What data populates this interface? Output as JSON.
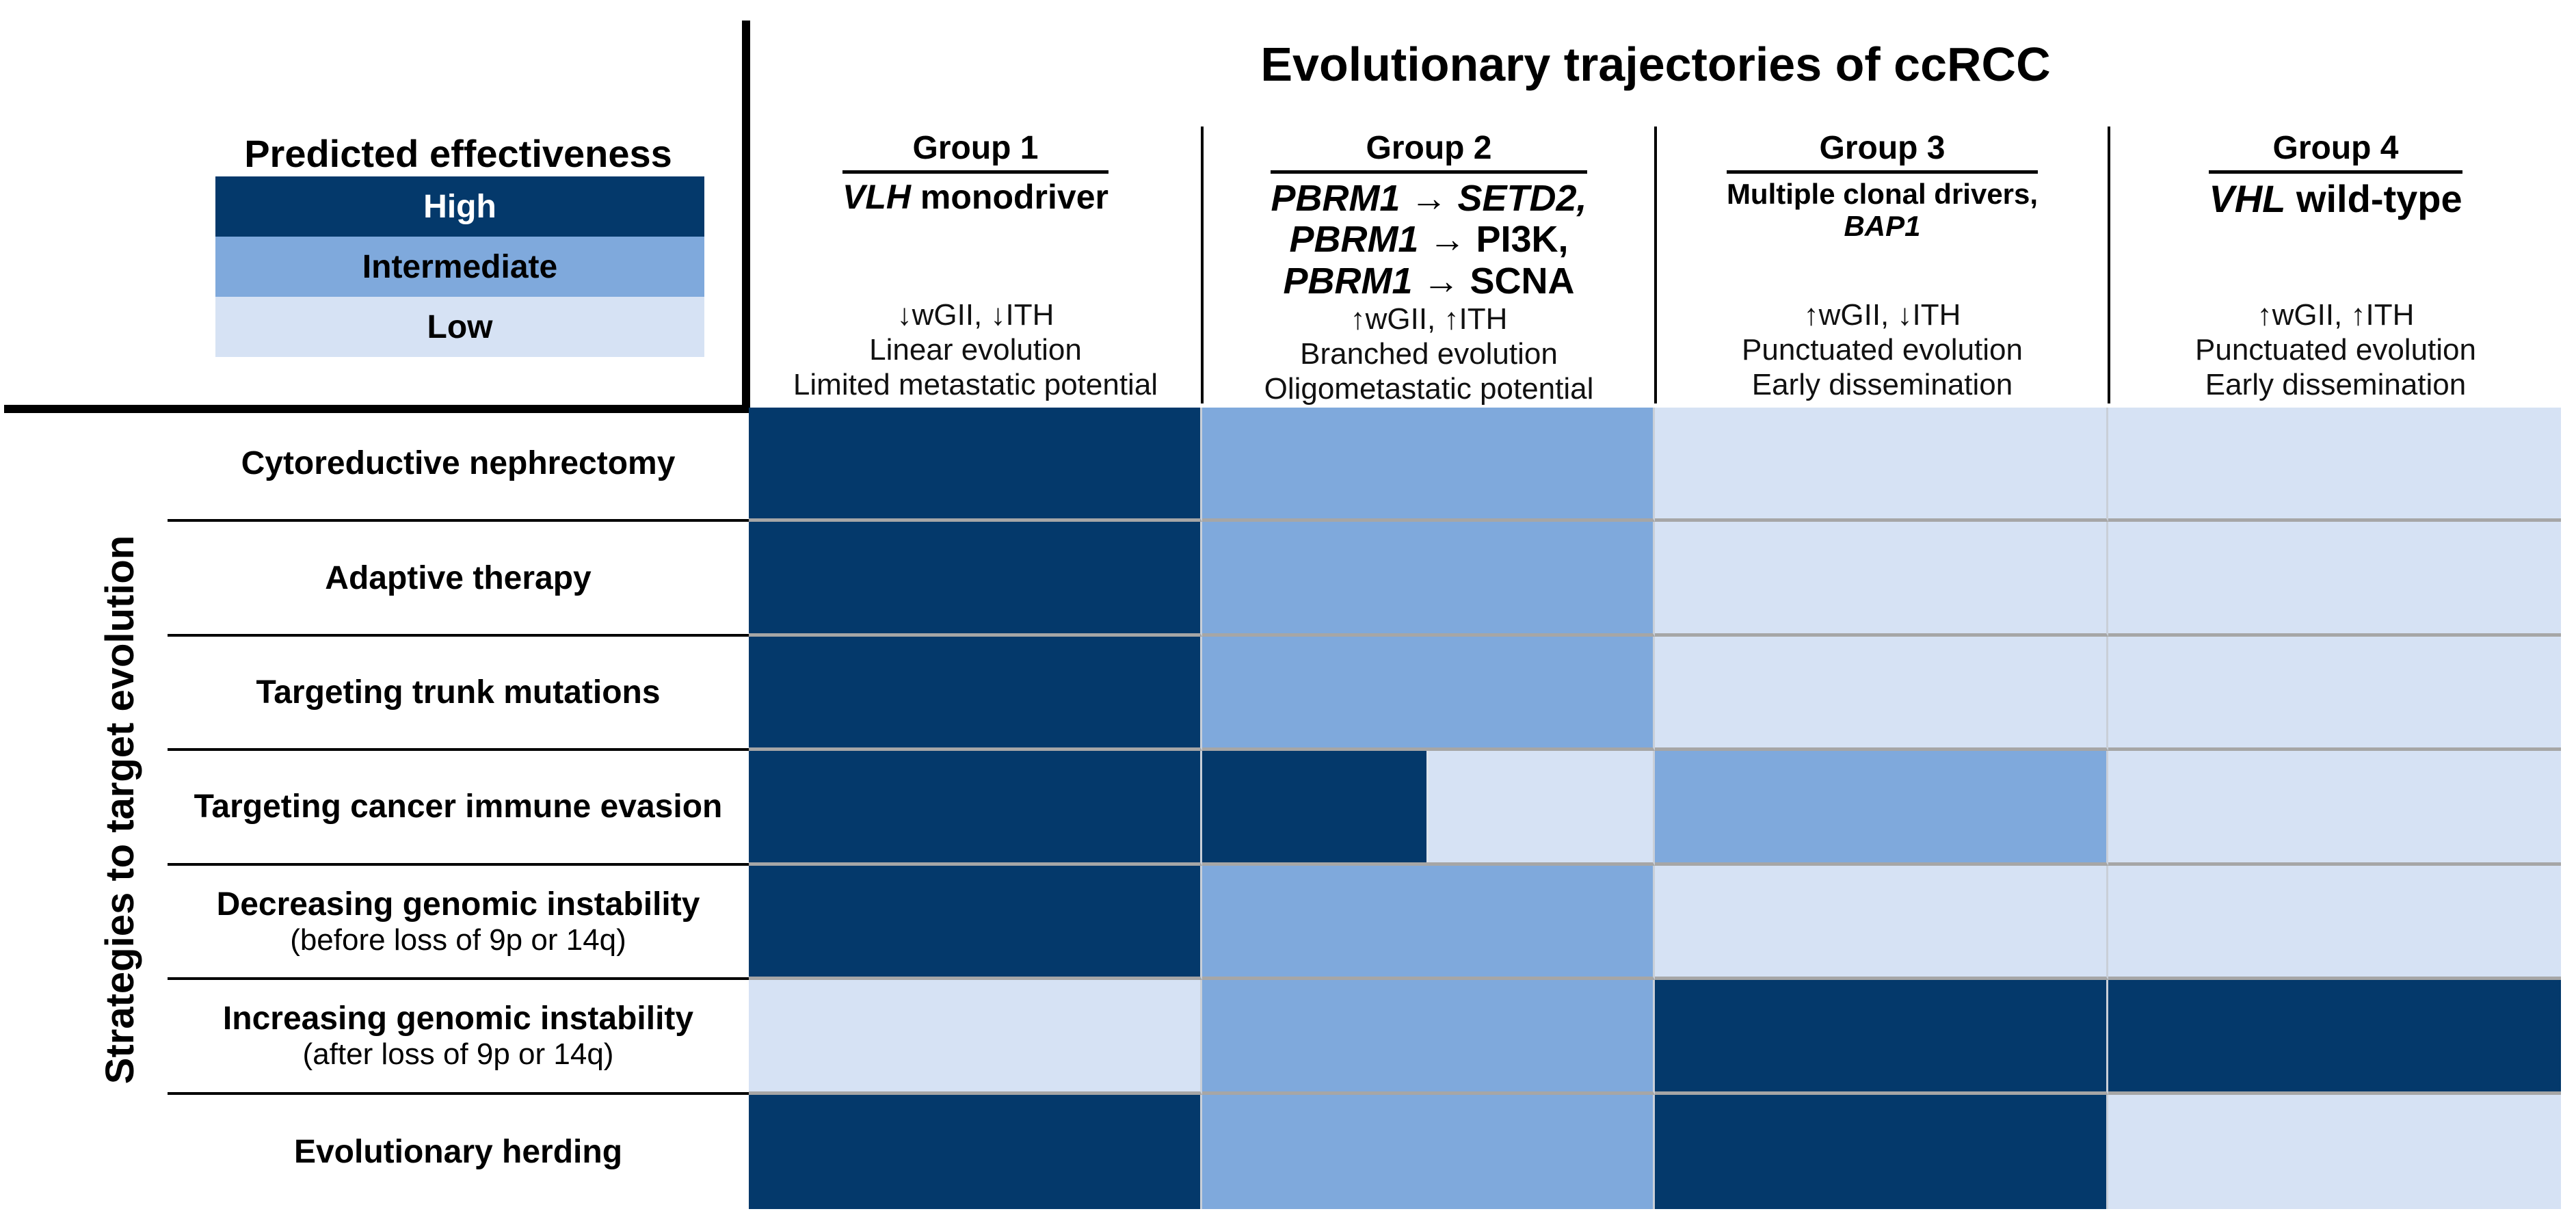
{
  "title": "Evolutionary trajectories of ccRCC",
  "y_axis_label": "Strategies to target evolution",
  "legend": {
    "title": "Predicted effectiveness",
    "levels": [
      {
        "label": "High"
      },
      {
        "label": "Intermediate"
      },
      {
        "label": "Low"
      }
    ]
  },
  "colors": {
    "high": "#04396B",
    "intermediate": "#7FA9DC",
    "low": "#D6E2F4",
    "high_text": "#FFFFFF",
    "default_text": "#000000",
    "grid_line_horizontal": "#A6A6A6",
    "grid_line_vertical": "#C9CFD8"
  },
  "groups": [
    {
      "name": "Group 1",
      "subtitle_lines": [
        [
          {
            "text": "VLH",
            "italic": true
          },
          {
            "text": " monodriver",
            "italic": false
          }
        ]
      ],
      "traits": [
        "↓wGII, ↓ITH",
        "Linear evolution",
        "Limited metastatic potential"
      ]
    },
    {
      "name": "Group 2",
      "subtitle_lines": [
        [
          {
            "text": "PBRM1",
            "italic": true
          },
          {
            "text": " → ",
            "italic": false
          },
          {
            "text": "SETD2,",
            "italic": true
          }
        ],
        [
          {
            "text": "PBRM1",
            "italic": true
          },
          {
            "text": " → ",
            "italic": false
          },
          {
            "text": "PI3K,",
            "italic": false
          }
        ],
        [
          {
            "text": "PBRM1",
            "italic": true
          },
          {
            "text": " → ",
            "italic": false
          },
          {
            "text": "SCNA",
            "italic": false
          }
        ]
      ],
      "traits": [
        "↑wGII, ↑ITH",
        "Branched evolution",
        "Oligometastatic potential"
      ]
    },
    {
      "name": "Group 3",
      "subtitle_lines": [
        [
          {
            "text": "Multiple clonal drivers,",
            "italic": false
          }
        ],
        [
          {
            "text": "BAP1",
            "italic": true
          }
        ]
      ],
      "traits": [
        "↑wGII, ↓ITH",
        "Punctuated evolution",
        "Early dissemination"
      ]
    },
    {
      "name": "Group 4",
      "subtitle_lines": [
        [
          {
            "text": "VHL",
            "italic": true
          },
          {
            "text": " wild-type",
            "italic": false
          }
        ]
      ],
      "traits": [
        "↑wGII, ↑ITH",
        "Punctuated evolution",
        "Early dissemination"
      ]
    }
  ],
  "matrix_rows": [
    {
      "lines": [
        {
          "text": "Cytoreductive nephrectomy",
          "bold": true
        }
      ]
    },
    {
      "lines": [
        {
          "text": "Adaptive therapy",
          "bold": true
        }
      ]
    },
    {
      "lines": [
        {
          "text": "Targeting trunk mutations",
          "bold": true
        }
      ]
    },
    {
      "lines": [
        {
          "text": "Targeting cancer immune evasion",
          "bold": true
        }
      ]
    },
    {
      "lines": [
        {
          "text": "Decreasing genomic instability",
          "bold": true
        },
        {
          "text": "(before loss of 9p or 14q)",
          "bold": false
        }
      ]
    },
    {
      "lines": [
        {
          "text": "Increasing genomic instability",
          "bold": true
        },
        {
          "text": "(after loss of 9p or 14q)",
          "bold": false
        }
      ]
    },
    {
      "lines": [
        {
          "text": "Evolutionary herding",
          "bold": true
        }
      ]
    }
  ],
  "chart_data": {
    "type": "heatmap",
    "title": "Evolutionary trajectories of ccRCC",
    "legend_title": "Predicted effectiveness",
    "legend": [
      "High",
      "Intermediate",
      "Low"
    ],
    "legend_position": "top-left",
    "xlabel": "Evolutionary trajectories of ccRCC",
    "ylabel": "Strategies to target evolution",
    "columns": [
      "Group 1",
      "Group 2",
      "Group 3",
      "Group 4"
    ],
    "rows": [
      "Cytoreductive nephrectomy",
      "Adaptive therapy",
      "Targeting trunk mutations",
      "Targeting cancer immune evasion",
      "Decreasing genomic instability (before loss of 9p or 14q)",
      "Increasing genomic instability (after loss of 9p or 14q)",
      "Evolutionary herding"
    ],
    "values": [
      [
        "High",
        "Intermediate",
        "Low",
        "Low"
      ],
      [
        "High",
        "Intermediate",
        "Low",
        "Low"
      ],
      [
        "High",
        "Intermediate",
        "Low",
        "Low"
      ],
      [
        "High",
        "High/Low",
        "Intermediate",
        "Low"
      ],
      [
        "High",
        "Intermediate",
        "Low",
        "Low"
      ],
      [
        "Low",
        "Intermediate",
        "High",
        "High"
      ],
      [
        "High",
        "Intermediate",
        "High",
        "Low"
      ]
    ]
  }
}
